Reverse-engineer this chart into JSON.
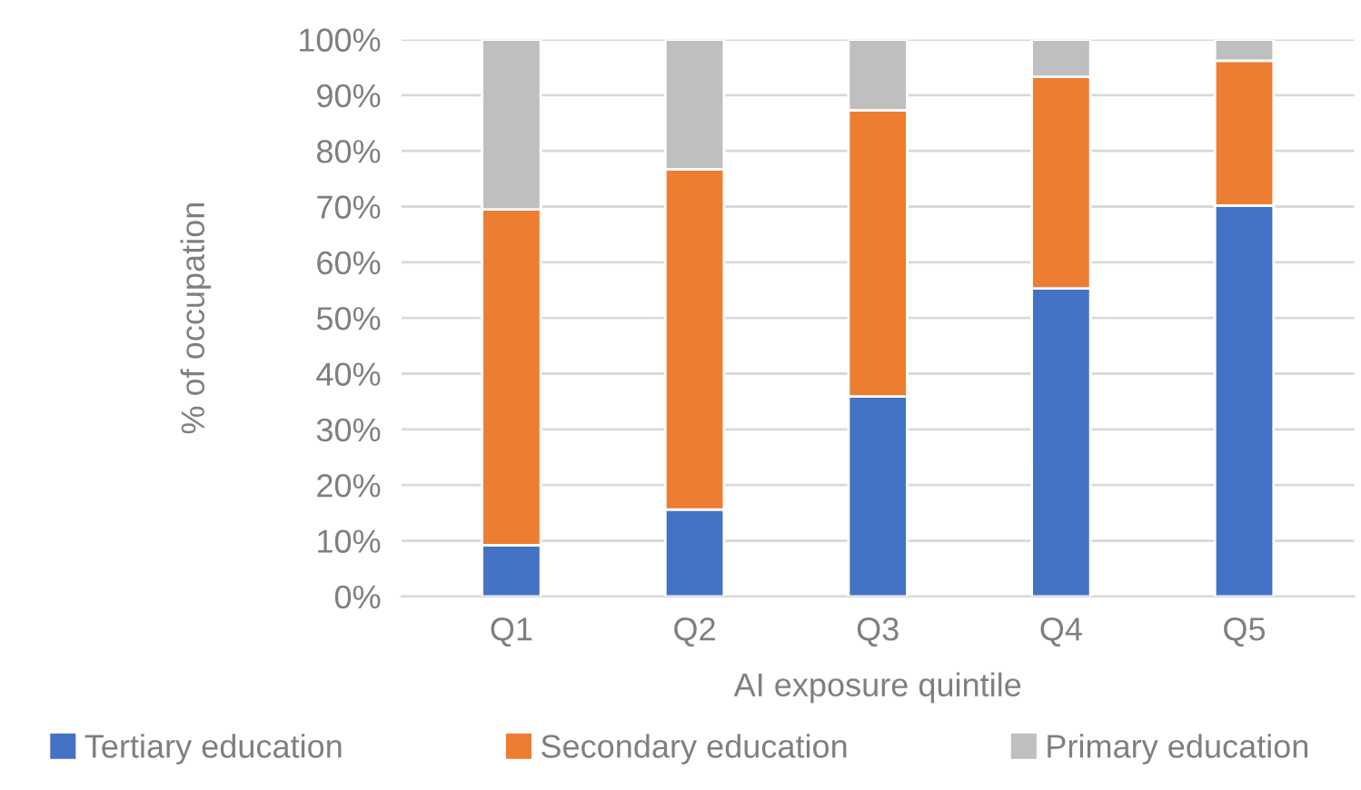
{
  "chart_data": {
    "type": "bar",
    "stacked": true,
    "xlabel": "AI exposure quintile",
    "ylabel": "% of occupation",
    "categories": [
      "Q1",
      "Q2",
      "Q3",
      "Q4",
      "Q5"
    ],
    "series": [
      {
        "name": "Tertiary education",
        "color": "#4472c4",
        "values": [
          9.2,
          15.6,
          35.9,
          55.3,
          70.2
        ]
      },
      {
        "name": "Secondary education",
        "color": "#ed7d31",
        "values": [
          60.3,
          61.1,
          51.4,
          38.0,
          26.0
        ]
      },
      {
        "name": "Primary education",
        "color": "#bfbfbf",
        "values": [
          30.5,
          23.3,
          12.7,
          6.7,
          3.8
        ]
      }
    ],
    "ylim": [
      0,
      100
    ],
    "yticks": [
      {
        "value": 0,
        "label": "0%"
      },
      {
        "value": 10,
        "label": "10%"
      },
      {
        "value": 20,
        "label": "20%"
      },
      {
        "value": 30,
        "label": "30%"
      },
      {
        "value": 40,
        "label": "40%"
      },
      {
        "value": 50,
        "label": "50%"
      },
      {
        "value": 60,
        "label": "60%"
      },
      {
        "value": 70,
        "label": "70%"
      },
      {
        "value": 80,
        "label": "80%"
      },
      {
        "value": 90,
        "label": "90%"
      },
      {
        "value": 100,
        "label": "100%"
      }
    ],
    "grid": "y",
    "legend": "bottom"
  }
}
